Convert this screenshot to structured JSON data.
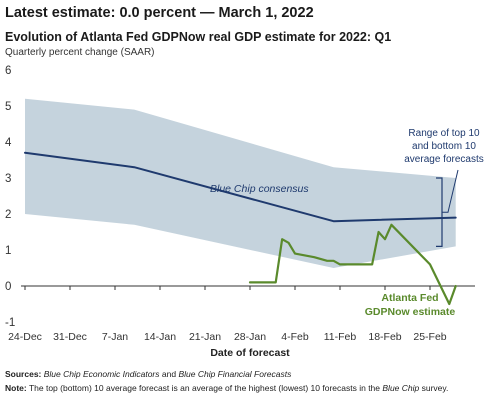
{
  "header": {
    "latest_label": "Latest estimate:",
    "latest_value": "0.0 percent",
    "date_sep": "—",
    "latest_date": "March 1, 2022"
  },
  "chart_data": {
    "type": "line",
    "title": "Evolution of Atlanta Fed GDPNow real GDP estimate for 2022: Q1",
    "subtitle": "Quarterly percent change (SAAR)",
    "xlabel": "Date of forecast",
    "ylabel": "",
    "ylim": [
      -1,
      6
    ],
    "yticks": [
      -1,
      0,
      1,
      2,
      3,
      4,
      5,
      6
    ],
    "x_range": [
      "2021-12-24",
      "2022-03-04"
    ],
    "xticks": [
      {
        "date": "2021-12-24",
        "label": "24-Dec"
      },
      {
        "date": "2021-12-31",
        "label": "31-Dec"
      },
      {
        "date": "2022-01-07",
        "label": "7-Jan"
      },
      {
        "date": "2022-01-14",
        "label": "14-Jan"
      },
      {
        "date": "2022-01-21",
        "label": "21-Jan"
      },
      {
        "date": "2022-01-28",
        "label": "28-Jan"
      },
      {
        "date": "2022-02-04",
        "label": "4-Feb"
      },
      {
        "date": "2022-02-11",
        "label": "11-Feb"
      },
      {
        "date": "2022-02-18",
        "label": "18-Feb"
      },
      {
        "date": "2022-02-25",
        "label": "25-Feb"
      }
    ],
    "grid": false,
    "band": {
      "x": [
        "2021-12-24",
        "2022-01-10",
        "2022-02-10",
        "2022-03-01"
      ],
      "upper": [
        5.2,
        4.9,
        3.3,
        3.0
      ],
      "lower": [
        2.0,
        1.7,
        0.5,
        1.1
      ]
    },
    "series": [
      {
        "name": "Blue Chip consensus",
        "color": "#1f3a6e",
        "x": [
          "2021-12-24",
          "2022-01-10",
          "2022-02-10",
          "2022-03-01"
        ],
        "y": [
          3.7,
          3.3,
          1.8,
          1.9
        ]
      },
      {
        "name": "Atlanta Fed GDPNow estimate",
        "color": "#5a8a2c",
        "x": [
          "2022-01-28",
          "2022-02-01",
          "2022-02-02",
          "2022-02-03",
          "2022-02-04",
          "2022-02-07",
          "2022-02-09",
          "2022-02-10",
          "2022-02-11",
          "2022-02-14",
          "2022-02-16",
          "2022-02-17",
          "2022-02-18",
          "2022-02-19",
          "2022-02-25",
          "2022-02-28",
          "2022-03-01"
        ],
        "y": [
          0.1,
          0.1,
          1.3,
          1.2,
          0.9,
          0.8,
          0.7,
          0.7,
          0.6,
          0.6,
          0.6,
          1.5,
          1.3,
          1.7,
          0.6,
          -0.5,
          0.0
        ]
      }
    ],
    "annotations": {
      "consensus_label": "Blue Chip consensus",
      "range_line1": "Range of top 10",
      "range_line2": "and bottom 10",
      "range_line3": "average forecasts",
      "gdpnow_line1": "Atlanta Fed",
      "gdpnow_line2": "GDPNow estimate"
    },
    "colors": {
      "band": "#c5d3dd",
      "axis": "#333333",
      "bracket": "#1f3a6e",
      "consensus_text": "#1f3a6e",
      "gdpnow_text": "#5a8a2c"
    }
  },
  "footer": {
    "sources_label": "Sources:",
    "sources_part1": "Blue Chip Economic Indicators",
    "sources_and": "and",
    "sources_part2": "Blue Chip Financial Forecasts",
    "note_label": "Note:",
    "note_text": "The top (bottom) 10 average forecast is an average of the highest (lowest) 10 forecasts in the",
    "note_italic": "Blue Chip",
    "note_end": "survey."
  }
}
